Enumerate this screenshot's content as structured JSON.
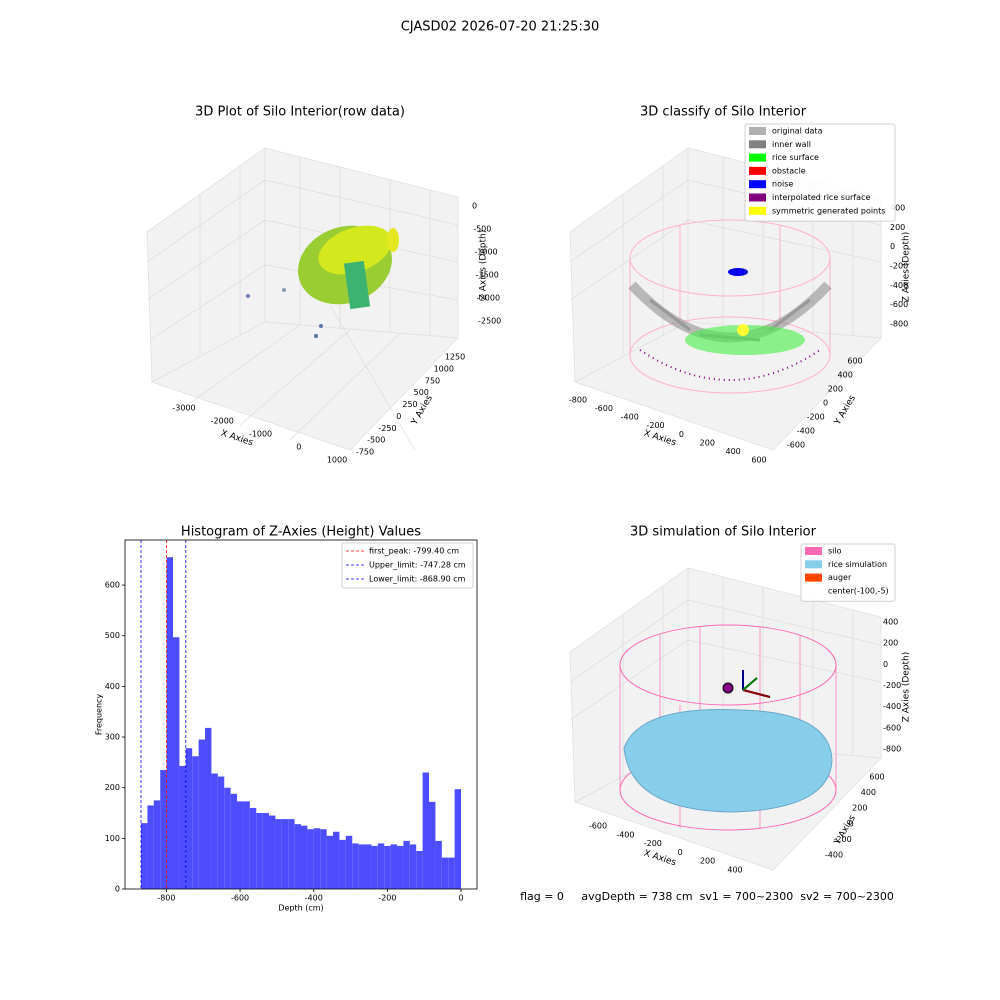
{
  "suptitle": "CJASD02 2026-07-20 21:25:30",
  "status": "flag = 0     avgDepth = 738 cm  sv1 = 700~2300  sv2 = 700~2300",
  "chart_data": [
    {
      "type": "scatter3d",
      "title": "3D Plot of Silo Interior(row data)",
      "xlabel": "X Axies",
      "ylabel": "Y Axies",
      "zlabel": "Z Axies (Depth)",
      "xticks": [
        -3000,
        -2000,
        -1000,
        0,
        1000
      ],
      "yticks": [
        -750,
        -500,
        -250,
        0,
        250,
        500,
        750,
        1000,
        1250
      ],
      "zticks": [
        0,
        -500,
        -1000,
        -1500,
        -2000,
        -2500
      ]
    },
    {
      "type": "scatter3d",
      "title": "3D classify of Silo Interior",
      "xlabel": "X Axies",
      "ylabel": "Y Axies",
      "zlabel": "Z Axies (Depth)",
      "xticks": [
        -800,
        -600,
        -400,
        -200,
        0,
        200,
        400,
        600
      ],
      "yticks": [
        -600,
        -400,
        -200,
        0,
        200,
        400,
        600
      ],
      "zticks": [
        400,
        200,
        0,
        -200,
        -400,
        -600,
        -800
      ],
      "legend": [
        {
          "name": "original data",
          "color": "#b0b0b0"
        },
        {
          "name": "inner wall",
          "color": "#808080"
        },
        {
          "name": "rice surface",
          "color": "#00ff00"
        },
        {
          "name": "obstacle",
          "color": "#ff0000"
        },
        {
          "name": "noise",
          "color": "#0000ff"
        },
        {
          "name": "interpolated rice surface",
          "color": "#800080"
        },
        {
          "name": "symmetric generated points",
          "color": "#ffff00"
        }
      ]
    },
    {
      "type": "histogram",
      "title": "Histogram of Z-Axies (Height) Values",
      "xlabel": "Depth (cm)",
      "ylabel": "Frequency",
      "color": "#4d4dff",
      "bins": [
        -868.9,
        -851.52,
        -834.14,
        -816.77,
        -799.39,
        -782.01,
        -764.63,
        -747.25,
        -729.88,
        -712.5,
        -695.12,
        -677.74,
        -660.36,
        -642.99,
        -625.61,
        -608.23,
        -590.85,
        -573.47,
        -556.1,
        -538.72,
        -521.34,
        -503.96,
        -486.58,
        -469.21,
        -451.83,
        -434.45,
        -417.07,
        -399.69,
        -382.32,
        -364.94,
        -347.56,
        -330.18,
        -312.8,
        -295.43,
        -278.05,
        -260.67,
        -243.29,
        -225.91,
        -208.54,
        -191.16,
        -173.78,
        -156.4,
        -139.02,
        -121.65,
        -104.27,
        -86.89,
        -69.51,
        -52.13,
        -34.76,
        -17.38,
        0
      ],
      "values": [
        130,
        165,
        175,
        235,
        655,
        497,
        243,
        278,
        262,
        295,
        318,
        228,
        222,
        200,
        188,
        173,
        173,
        160,
        150,
        150,
        145,
        138,
        138,
        138,
        128,
        125,
        118,
        120,
        118,
        105,
        113,
        97,
        105,
        90,
        88,
        88,
        85,
        90,
        85,
        88,
        85,
        95,
        88,
        75,
        230,
        172,
        95,
        62,
        62,
        197
      ],
      "lines": [
        {
          "name": "first_peak: -799.40 cm",
          "value": -799.4,
          "color": "#ff0000"
        },
        {
          "name": "Upper_limit: -747.28 cm",
          "value": -747.28,
          "color": "#0000ff"
        },
        {
          "name": "Lower_limit: -868.90 cm",
          "value": -868.9,
          "color": "#0000ff"
        }
      ],
      "xlim": [
        -912.4,
        43.4
      ],
      "ylim": [
        0,
        689
      ],
      "xticks": [
        -800,
        -600,
        -400,
        -200,
        0
      ],
      "yticks": [
        0,
        100,
        200,
        300,
        400,
        500,
        600
      ]
    },
    {
      "type": "scatter3d",
      "title": "3D simulation of Silo Interior",
      "xlabel": "X Axies",
      "ylabel": "Y Axies",
      "zlabel": "Z Axies (Depth)",
      "xticks": [
        -600,
        -400,
        -200,
        0,
        200,
        400
      ],
      "yticks": [
        -400,
        -200,
        0,
        200,
        400,
        600
      ],
      "zticks": [
        400,
        200,
        0,
        -200,
        -400,
        -600,
        -800
      ],
      "legend": [
        {
          "name": "silo",
          "color": "#ff69b4"
        },
        {
          "name": "rice simulation",
          "color": "#87ceeb"
        },
        {
          "name": "auger",
          "color": "#ff4500"
        },
        {
          "name": "center(-100,-5)",
          "color": "#ffffff"
        }
      ]
    }
  ]
}
